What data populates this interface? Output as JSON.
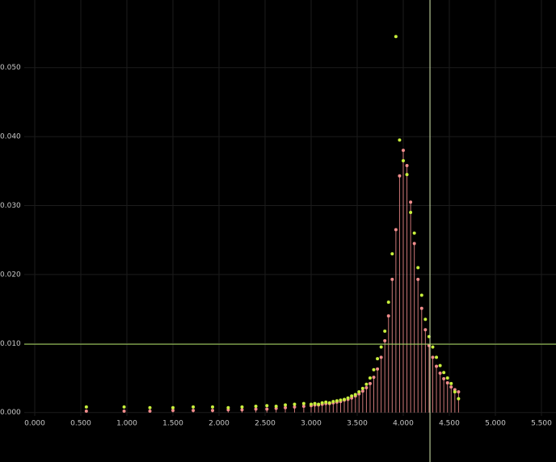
{
  "chart_data": {
    "type": "stem-scatter",
    "x": [
      0.56,
      0.97,
      1.25,
      1.5,
      1.72,
      1.93,
      2.1,
      2.25,
      2.4,
      2.52,
      2.62,
      2.72,
      2.82,
      2.92,
      3.0,
      3.04,
      3.08,
      3.12,
      3.16,
      3.2,
      3.24,
      3.28,
      3.32,
      3.36,
      3.4,
      3.44,
      3.48,
      3.52,
      3.56,
      3.6,
      3.64,
      3.68,
      3.72,
      3.76,
      3.8,
      3.84,
      3.88,
      3.92,
      3.96,
      4.0,
      4.04,
      4.08,
      4.12,
      4.16,
      4.2,
      4.24,
      4.28,
      4.32,
      4.36,
      4.4,
      4.44,
      4.48,
      4.52,
      4.56,
      4.6
    ],
    "series": [
      {
        "color": "#f08c8c",
        "stems": true,
        "values": [
          0.0002,
          0.0002,
          0.0002,
          0.0003,
          0.0003,
          0.0003,
          0.0004,
          0.0004,
          0.0005,
          0.0005,
          0.0006,
          0.0007,
          0.0008,
          0.0009,
          0.001,
          0.0011,
          0.0011,
          0.0012,
          0.0013,
          0.0013,
          0.0014,
          0.0015,
          0.0016,
          0.0018,
          0.0019,
          0.0021,
          0.0024,
          0.0027,
          0.0031,
          0.0036,
          0.0042,
          0.0051,
          0.0063,
          0.008,
          0.0104,
          0.014,
          0.0193,
          0.0265,
          0.0343,
          0.038,
          0.0358,
          0.0305,
          0.0245,
          0.0193,
          0.0151,
          0.012,
          0.0097,
          0.008,
          0.0067,
          0.0057,
          0.0049,
          0.0043,
          0.0037,
          0.0033,
          0.003
        ]
      },
      {
        "color": "#c8f03c",
        "stems": false,
        "values": [
          0.0008,
          0.0008,
          0.0007,
          0.0007,
          0.0008,
          0.0008,
          0.0007,
          0.0008,
          0.0009,
          0.001,
          0.0009,
          0.0011,
          0.0012,
          0.0013,
          0.0012,
          0.0013,
          0.0012,
          0.0014,
          0.0015,
          0.0014,
          0.0016,
          0.0017,
          0.0018,
          0.0019,
          0.0021,
          0.0024,
          0.0026,
          0.003,
          0.0035,
          0.0041,
          0.005,
          0.0062,
          0.0078,
          0.0095,
          0.0118,
          0.016,
          0.023,
          0.0545,
          0.0395,
          0.0365,
          0.0345,
          0.029,
          0.026,
          0.021,
          0.017,
          0.0135,
          0.011,
          0.0095,
          0.008,
          0.0068,
          0.0058,
          0.005,
          0.0042,
          0.003,
          0.002
        ]
      }
    ],
    "xlim": [
      -0.114,
      5.658
    ],
    "ylim": [
      -0.0005,
      0.0598
    ],
    "xticks": [
      {
        "value": 0,
        "label": "0.000"
      },
      {
        "value": 0.5,
        "label": "0.500"
      },
      {
        "value": 1,
        "label": "1.000"
      },
      {
        "value": 1.5,
        "label": "1.500"
      },
      {
        "value": 2,
        "label": "2.000"
      },
      {
        "value": 2.5,
        "label": "2.500"
      },
      {
        "value": 3,
        "label": "3.000"
      },
      {
        "value": 3.5,
        "label": "3.500"
      },
      {
        "value": 4,
        "label": "4.000"
      },
      {
        "value": 4.5,
        "label": "4.500"
      },
      {
        "value": 5,
        "label": "5.000"
      },
      {
        "value": 5.5,
        "label": "5.500"
      }
    ],
    "yticks": [
      {
        "value": 0,
        "label": "0.000"
      },
      {
        "value": 0.01,
        "label": "0.010"
      },
      {
        "value": 0.02,
        "label": "0.020"
      },
      {
        "value": 0.03,
        "label": "0.030"
      },
      {
        "value": 0.04,
        "label": "0.040"
      },
      {
        "value": 0.05,
        "label": "0.050"
      }
    ],
    "grid": true,
    "crosshair": {
      "x": 4.29,
      "y": 0.0099
    }
  }
}
